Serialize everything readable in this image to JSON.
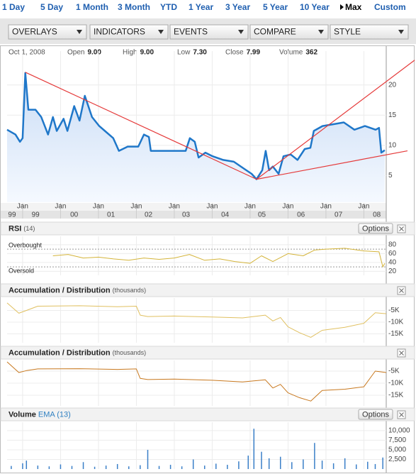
{
  "range_links": [
    {
      "label": "1 Day"
    },
    {
      "label": "5 Day"
    },
    {
      "label": "1 Month"
    },
    {
      "label": "3 Month"
    },
    {
      "label": "YTD"
    },
    {
      "label": "1 Year"
    },
    {
      "label": "3 Year"
    },
    {
      "label": "5 Year"
    },
    {
      "label": "10 Year"
    },
    {
      "label": "Max",
      "selected": true
    },
    {
      "label": "Custom"
    }
  ],
  "menus": [
    "OVERLAYS",
    "INDICATORS",
    "EVENTS",
    "COMPARE",
    "STYLE"
  ],
  "quote": {
    "date": "Oct 1, 2008",
    "fields": [
      {
        "label": "Open",
        "value": "9.00"
      },
      {
        "label": "High",
        "value": "9.00"
      },
      {
        "label": "Low",
        "value": "7.30"
      },
      {
        "label": "Close",
        "value": "7.99"
      },
      {
        "label": "Volume",
        "value": "362"
      }
    ]
  },
  "chart_data": [
    {
      "type": "line",
      "color": "#1f77c9",
      "grid": true,
      "x": [
        1998.59,
        1998.81,
        1998.93,
        1999.0,
        1999.07,
        1999.15,
        1999.34,
        1999.49,
        1999.67,
        1999.8,
        1999.9,
        2000.08,
        2000.18,
        2000.36,
        2000.5,
        2000.64,
        2000.83,
        2001.02,
        2001.17,
        2001.39,
        2001.54,
        2001.77,
        2002.05,
        2002.2,
        2002.33,
        2002.38,
        2002.61,
        2002.89,
        2003.3,
        2003.41,
        2003.54,
        2003.64,
        2003.82,
        2004.01,
        2004.29,
        2004.57,
        2004.85,
        2005.04,
        2005.17,
        2005.32,
        2005.41,
        2005.5,
        2005.6,
        2005.75,
        2005.88,
        2006.07,
        2006.25,
        2006.44,
        2006.59,
        2006.68,
        2006.91,
        2007.19,
        2007.47,
        2007.75,
        2008.03,
        2008.31,
        2008.4,
        2008.46,
        2008.55
      ],
      "values": [
        12.6,
        11.8,
        10.6,
        11.2,
        22.0,
        15.9,
        15.9,
        14.7,
        11.8,
        14.7,
        12.4,
        14.4,
        12.4,
        16.5,
        14.1,
        18.2,
        14.7,
        13.2,
        12.4,
        11.2,
        9.1,
        9.8,
        9.8,
        11.8,
        11.4,
        9.1,
        9.1,
        9.1,
        9.1,
        11.2,
        10.6,
        8.0,
        8.8,
        8.2,
        7.6,
        7.3,
        6.1,
        5.3,
        4.4,
        5.9,
        9.1,
        5.9,
        6.5,
        5.3,
        8.2,
        8.5,
        7.6,
        9.4,
        9.6,
        12.4,
        13.2,
        13.5,
        13.8,
        12.6,
        13.2,
        12.6,
        12.9,
        8.8,
        9.2
      ],
      "xlim": [
        1998.59,
        2008.59
      ],
      "ylim": [
        0.6,
        25.6
      ],
      "yticks": [
        5,
        10,
        15,
        20
      ],
      "xticks": [
        {
          "value": 1999,
          "label": "Jan"
        },
        {
          "value": 2000,
          "label": "Jan"
        },
        {
          "value": 2001,
          "label": "Jan"
        },
        {
          "value": 2002,
          "label": "Jan"
        },
        {
          "value": 2003,
          "label": "Jan"
        },
        {
          "value": 2004,
          "label": "Jan"
        },
        {
          "value": 2005,
          "label": "Jan"
        },
        {
          "value": 2006,
          "label": "Jan"
        },
        {
          "value": 2007,
          "label": "Jan"
        },
        {
          "value": 2008,
          "label": "Jan"
        }
      ],
      "year_labels": [
        {
          "value": 1998.72,
          "label": "99"
        },
        {
          "value": 1999.34,
          "label": "99"
        },
        {
          "value": 2000.36,
          "label": "00"
        },
        {
          "value": 2001.33,
          "label": "01"
        },
        {
          "value": 2002.32,
          "label": "02"
        },
        {
          "value": 2003.31,
          "label": "03"
        },
        {
          "value": 2004.34,
          "label": "04"
        },
        {
          "value": 2005.31,
          "label": "05"
        },
        {
          "value": 2006.34,
          "label": "06"
        },
        {
          "value": 2007.33,
          "label": "07"
        },
        {
          "value": 2008.34,
          "label": "08"
        }
      ],
      "trendline_color": "#e53a3a",
      "trendlines": [
        {
          "x": [
            1999.07,
            2005.17
          ],
          "y": [
            22.1,
            4.4
          ]
        },
        {
          "x": [
            2005.17,
            2009.34
          ],
          "y": [
            4.4,
            24.1
          ]
        },
        {
          "x": [
            2005.17,
            2009.15
          ],
          "y": [
            4.4,
            9.1
          ]
        }
      ]
    },
    {
      "type": "line",
      "title": "RSI",
      "subtitle": "(14)",
      "options_label": "Options",
      "color": "#d4b43a",
      "x": [
        1999.8,
        2000.2,
        2000.6,
        2001.0,
        2001.4,
        2001.8,
        2002.2,
        2002.6,
        2003.0,
        2003.4,
        2003.8,
        2004.2,
        2004.6,
        2005.0,
        2005.3,
        2005.6,
        2006.0,
        2006.4,
        2006.7,
        2007.0,
        2007.5,
        2008.0,
        2008.4,
        2008.5,
        2008.55
      ],
      "values": [
        55,
        58,
        50,
        52,
        48,
        45,
        50,
        47,
        50,
        58,
        45,
        48,
        42,
        38,
        55,
        42,
        60,
        55,
        68,
        70,
        72,
        66,
        64,
        30,
        38
      ],
      "xlim": [
        1998.59,
        2008.59
      ],
      "ylim": [
        11,
        99
      ],
      "yticks": [
        20,
        40,
        60,
        80
      ],
      "levels": [
        {
          "label": "Overbought",
          "value": 70
        },
        {
          "label": "Oversold",
          "value": 30
        }
      ]
    },
    {
      "type": "line",
      "title": "Accumulation / Distribution",
      "subtitle": "(thousands)",
      "color": "#e0c060",
      "x": [
        1998.59,
        1998.9,
        1999.1,
        1999.4,
        2000.5,
        2001.5,
        2002.0,
        2002.1,
        2002.3,
        2003.0,
        2004.0,
        2004.8,
        2005.4,
        2005.6,
        2005.8,
        2006.0,
        2006.3,
        2006.6,
        2006.9,
        2007.5,
        2008.0,
        2008.3,
        2008.59
      ],
      "values": [
        -1.8,
        -6.2,
        -5.0,
        -3.2,
        -3.0,
        -3.4,
        -3.2,
        -7.0,
        -7.6,
        -7.4,
        -7.8,
        -8.2,
        -7.0,
        -9.5,
        -8.0,
        -12.0,
        -14.5,
        -16.5,
        -13.5,
        -12.2,
        -10.5,
        -6.0,
        -6.4
      ],
      "xlim": [
        1998.59,
        2008.59
      ],
      "ylim": [
        -18.8,
        0.3
      ],
      "yticks": [
        {
          "value": -15,
          "label": "-15K"
        },
        {
          "value": -10,
          "label": "-10K"
        },
        {
          "value": -5,
          "label": "-5K"
        }
      ]
    },
    {
      "type": "line",
      "title": "Accumulation / Distribution",
      "subtitle": "(thousands)",
      "color": "#c8781e",
      "x": [
        1998.59,
        1998.9,
        1999.1,
        1999.4,
        2000.5,
        2001.5,
        2002.0,
        2002.1,
        2002.3,
        2003.0,
        2004.0,
        2004.8,
        2005.4,
        2005.6,
        2005.8,
        2006.0,
        2006.3,
        2006.6,
        2006.9,
        2007.5,
        2008.0,
        2008.3,
        2008.59
      ],
      "values": [
        -1.2,
        -5.6,
        -4.8,
        -4.1,
        -4.0,
        -4.3,
        -4.1,
        -8.0,
        -8.5,
        -8.3,
        -8.8,
        -9.5,
        -8.6,
        -12.0,
        -10.5,
        -14.0,
        -16.0,
        -17.4,
        -13.0,
        -12.5,
        -11.5,
        -5.0,
        -5.6
      ],
      "xlim": [
        1998.59,
        2008.59
      ],
      "ylim": [
        -19.4,
        -0.6
      ],
      "yticks": [
        {
          "value": -15,
          "label": "-15K"
        },
        {
          "value": -10,
          "label": "-10K"
        },
        {
          "value": -5,
          "label": "-5K"
        }
      ]
    },
    {
      "type": "bar",
      "title": "Volume",
      "subtitle": "EMA (13)",
      "options_label": "Options",
      "color": "#3a7fc8",
      "x": [
        1998.7,
        1999.0,
        1999.1,
        1999.4,
        1999.7,
        2000.0,
        2000.3,
        2000.6,
        2000.9,
        2001.2,
        2001.5,
        2001.8,
        2002.1,
        2002.3,
        2002.6,
        2002.9,
        2003.2,
        2003.5,
        2003.8,
        2004.1,
        2004.4,
        2004.7,
        2004.95,
        2005.1,
        2005.3,
        2005.5,
        2005.8,
        2006.1,
        2006.4,
        2006.7,
        2006.9,
        2007.2,
        2007.5,
        2007.8,
        2008.1,
        2008.3,
        2008.5
      ],
      "values": [
        800,
        1500,
        2200,
        900,
        700,
        1200,
        800,
        1800,
        600,
        900,
        1300,
        700,
        1000,
        5000,
        800,
        1100,
        700,
        2500,
        900,
        1400,
        1100,
        2000,
        3500,
        10500,
        4500,
        2800,
        3200,
        1800,
        2500,
        6800,
        2200,
        1500,
        2800,
        1200,
        1900,
        1300,
        3000
      ],
      "xlim": [
        1998.59,
        2008.59
      ],
      "ylim": [
        0,
        12200
      ],
      "yticks": [
        {
          "value": 2500,
          "label": "2,500"
        },
        {
          "value": 5000,
          "label": "5,000"
        },
        {
          "value": 7500,
          "label": "7,500"
        },
        {
          "value": 10000,
          "label": "10,000"
        }
      ]
    }
  ]
}
